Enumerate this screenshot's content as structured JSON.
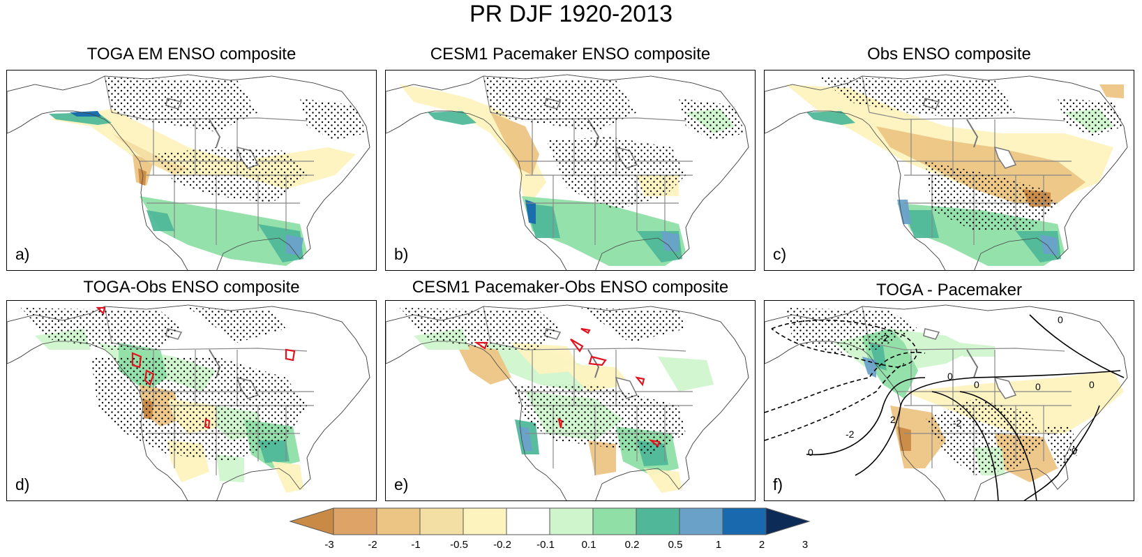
{
  "figure": {
    "title": "PR DJF 1920-2013",
    "panels": [
      {
        "id": "a",
        "title": "TOGA EM ENSO composite",
        "label": "a)"
      },
      {
        "id": "b",
        "title": "CESM1 Pacemaker ENSO composite",
        "label": "b)"
      },
      {
        "id": "c",
        "title": "Obs ENSO composite",
        "label": "c)"
      },
      {
        "id": "d",
        "title": "TOGA-Obs ENSO composite",
        "label": "d)"
      },
      {
        "id": "e",
        "title": "CESM1 Pacemaker-Obs ENSO composite",
        "label": "e)"
      },
      {
        "id": "f",
        "title": "TOGA - Pacemaker",
        "label": "f)"
      }
    ],
    "contour_labels": [
      "0",
      "-2",
      "2"
    ]
  },
  "colorbar": {
    "levels": [
      "-3",
      "-2",
      "-1",
      "-0.5",
      "-0.2",
      "-0.1",
      "0.1",
      "0.2",
      "0.5",
      "1",
      "2",
      "3"
    ],
    "colors": [
      "#c98a45",
      "#dea366",
      "#ecc584",
      "#f3dea3",
      "#fdf3bf",
      "#ffffff",
      "#cff5cd",
      "#8fdfa6",
      "#50b899",
      "#6aa1c9",
      "#1869ad",
      "#0d2b57"
    ],
    "below_color": "#c98a45",
    "above_color": "#0d2b57"
  },
  "colors": {
    "brown_dark": "#c98a45",
    "tan": "#ecc584",
    "light_tan": "#f3dea3",
    "cream": "#fdf3bf",
    "pale_green": "#cff5cd",
    "green": "#8fdfa6",
    "teal": "#50b899",
    "light_blue": "#6aa1c9",
    "blue": "#1869ad",
    "red_contour": "#e0141e",
    "boundary_gray": "#888888"
  }
}
